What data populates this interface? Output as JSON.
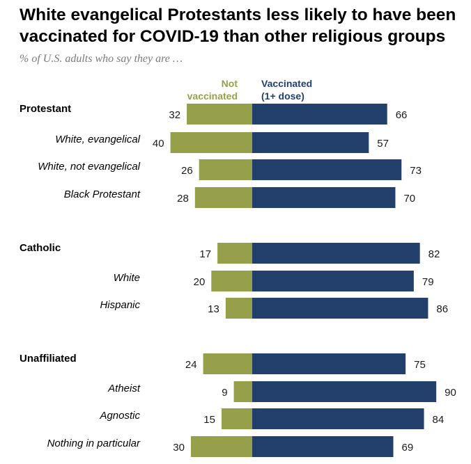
{
  "title": "White evangelical Protestants less likely to have been vaccinated for COVID-19 than other religious groups",
  "subtitle": "% of U.S. adults who say they are …",
  "colors": {
    "not_vaccinated": "#96a04a",
    "vaccinated": "#23406d",
    "value_text": "#1a1a1a"
  },
  "chart_data": {
    "type": "bar",
    "orientation": "diverging-horizontal",
    "legend": {
      "not_vaccinated": [
        "Not",
        "vaccinated"
      ],
      "vaccinated": [
        "Vaccinated",
        "(1+ dose)"
      ]
    },
    "categories": [
      "Protestant",
      "White, evangelical",
      "White, not evangelical",
      "Black Protestant",
      "Catholic",
      "White",
      "Hispanic",
      "Unaffiliated",
      "Atheist",
      "Agnostic",
      "Nothing in particular"
    ],
    "category_style": [
      "group",
      "sub",
      "sub",
      "sub",
      "group",
      "sub",
      "sub",
      "group",
      "sub",
      "sub",
      "sub"
    ],
    "series": [
      {
        "name": "Not vaccinated",
        "values": [
          32,
          40,
          26,
          28,
          17,
          20,
          13,
          24,
          9,
          15,
          30
        ]
      },
      {
        "name": "Vaccinated (1+ dose)",
        "values": [
          66,
          57,
          73,
          70,
          82,
          79,
          86,
          75,
          90,
          84,
          69
        ]
      }
    ]
  }
}
